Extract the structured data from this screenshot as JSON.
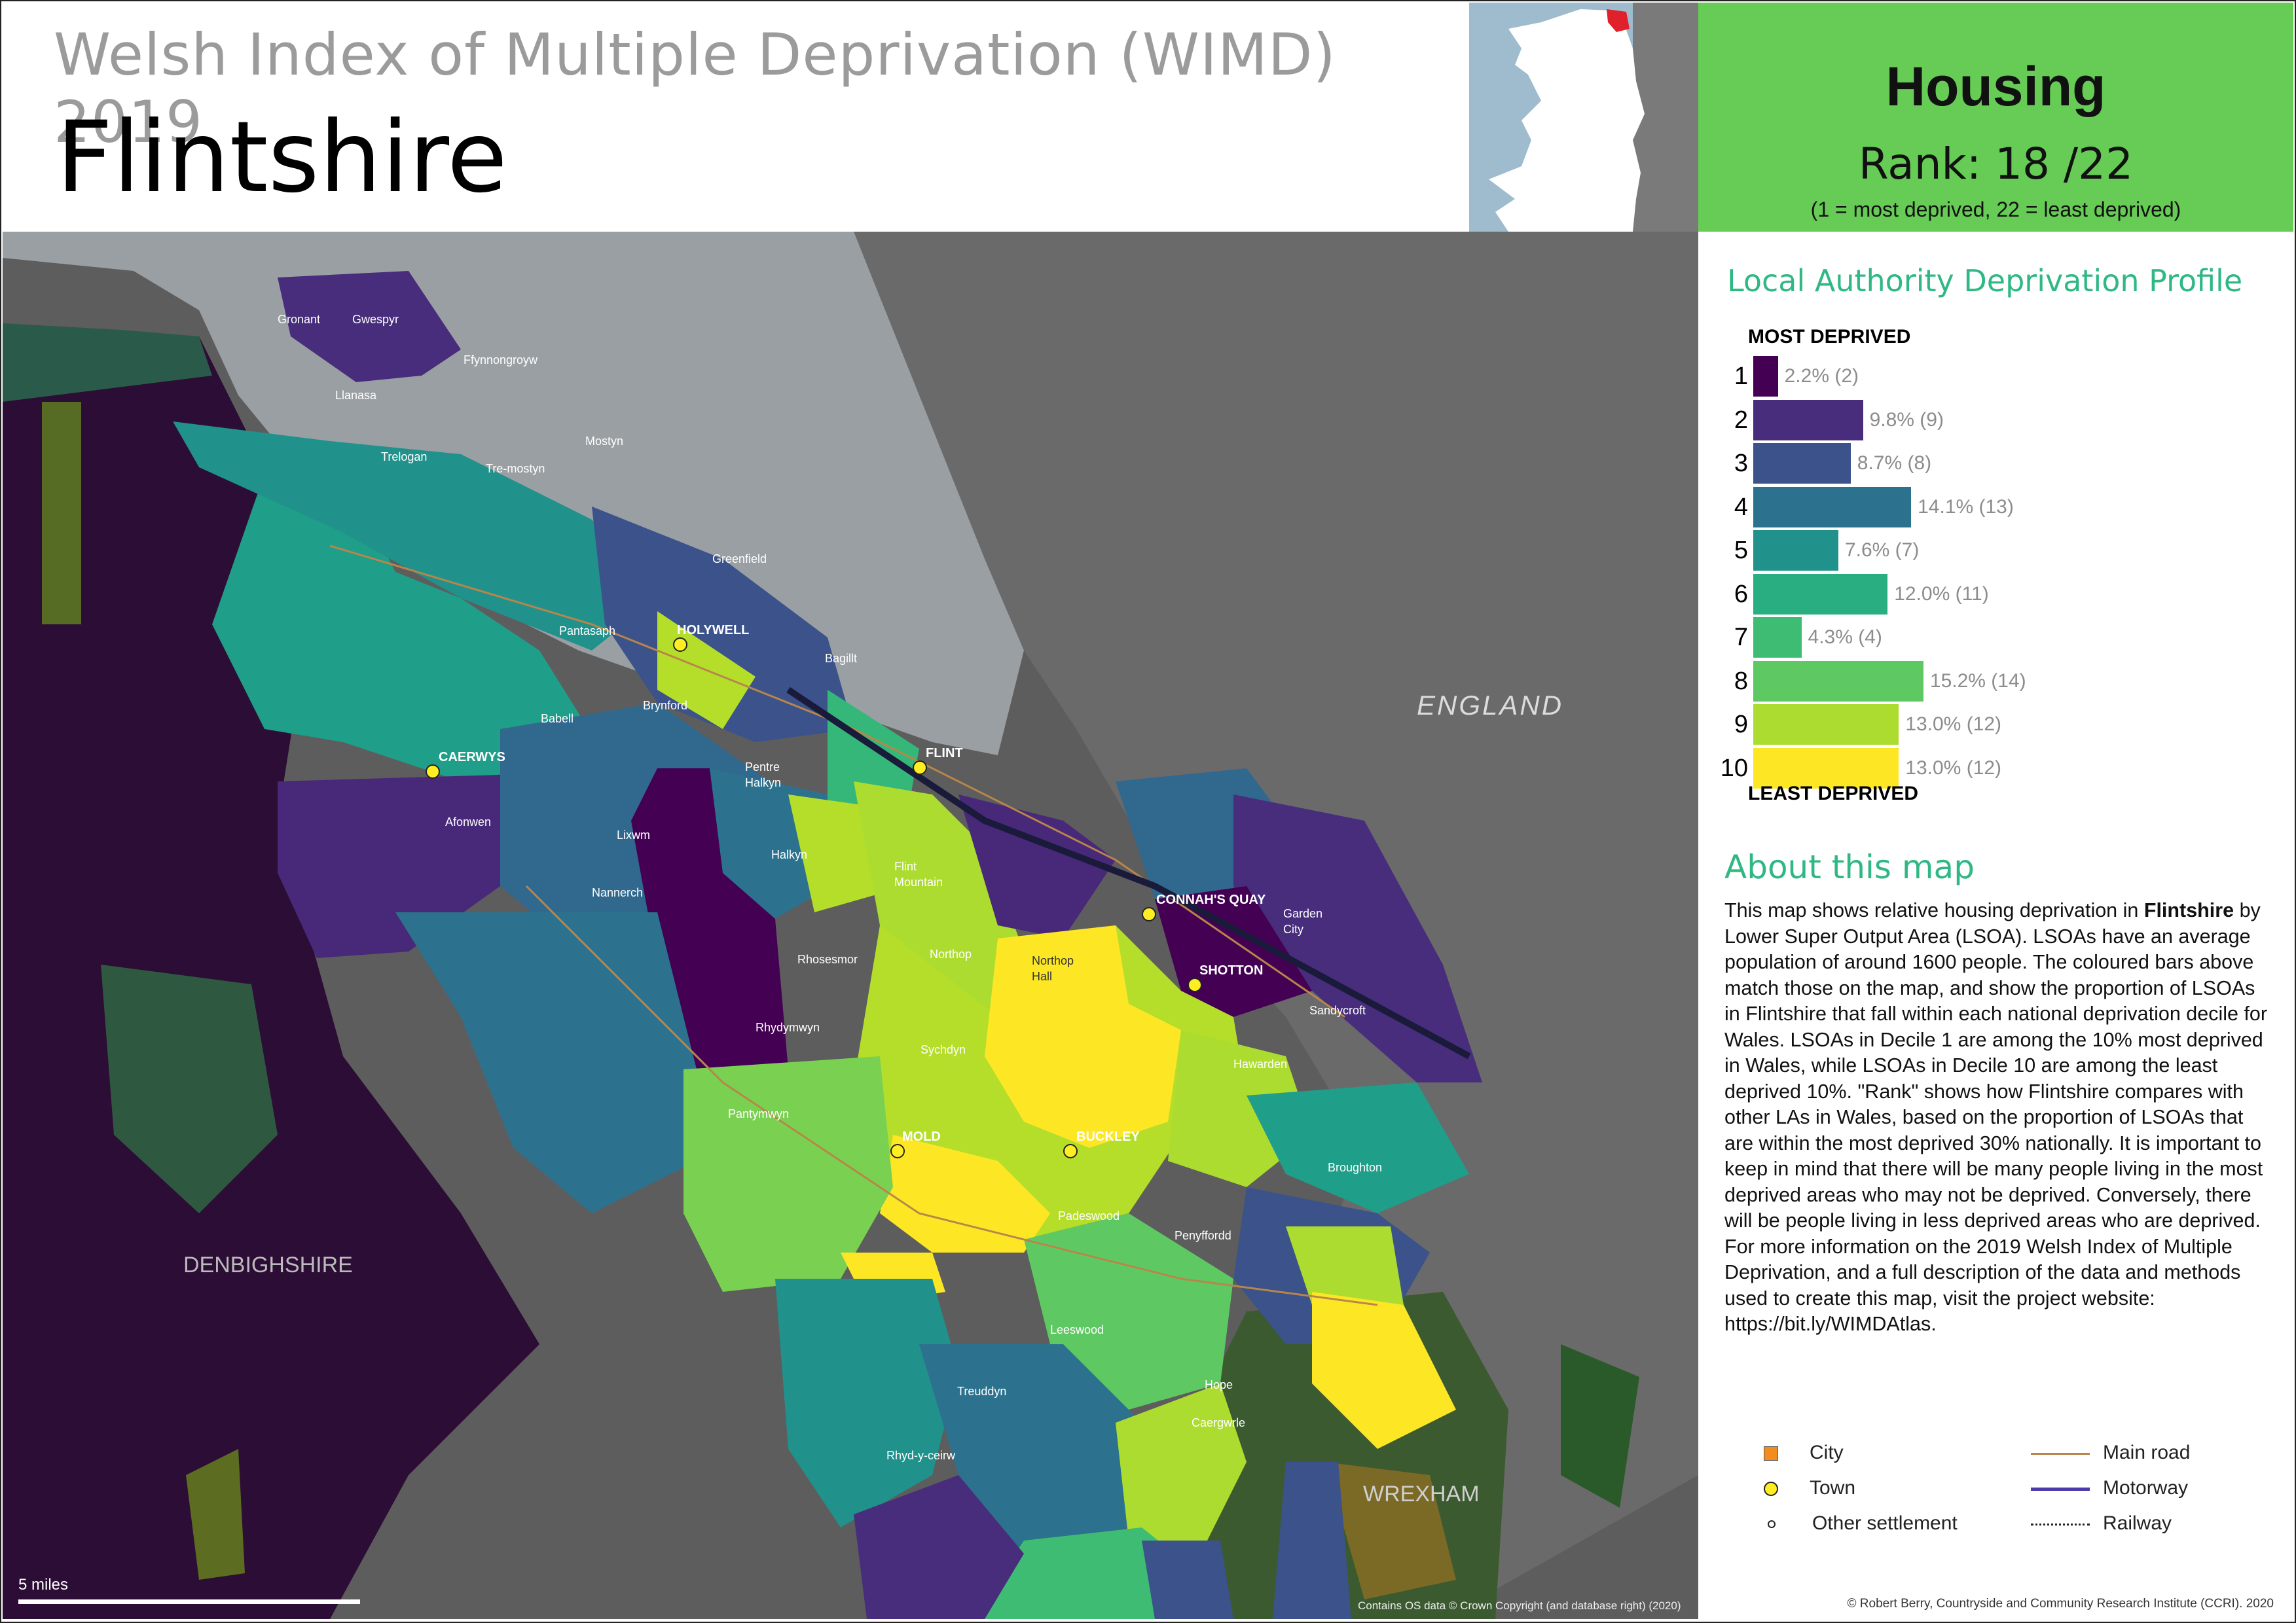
{
  "header": {
    "supertitle": "Welsh Index of Multiple Deprivation (WIMD) 2019",
    "title": "Flintshire"
  },
  "domain_panel": {
    "theme": "Housing",
    "rank_text": "Rank: 18 /22",
    "rank": 18,
    "rank_total": 22,
    "rank_key": "(1 =   most deprived, 22 = least deprived)"
  },
  "profile": {
    "title": "Local Authority Deprivation Profile",
    "top_label": "MOST DEPRIVED",
    "bottom_label": "LEAST DEPRIVED",
    "deciles": [
      {
        "decile": "1",
        "percent": 2.2,
        "count": 2,
        "label": "2.2% (2)",
        "color": "#440154"
      },
      {
        "decile": "2",
        "percent": 9.8,
        "count": 9,
        "label": "9.8% (9)",
        "color": "#472d7b"
      },
      {
        "decile": "3",
        "percent": 8.7,
        "count": 8,
        "label": "8.7% (8)",
        "color": "#3b528b"
      },
      {
        "decile": "4",
        "percent": 14.1,
        "count": 13,
        "label": "14.1% (13)",
        "color": "#2c728e"
      },
      {
        "decile": "5",
        "percent": 7.6,
        "count": 7,
        "label": "7.6% (7)",
        "color": "#21918c"
      },
      {
        "decile": "6",
        "percent": 12.0,
        "count": 11,
        "label": "12.0% (11)",
        "color": "#28ae80"
      },
      {
        "decile": "7",
        "percent": 4.3,
        "count": 4,
        "label": "4.3% (4)",
        "color": "#3fbc73"
      },
      {
        "decile": "8",
        "percent": 15.2,
        "count": 14,
        "label": "15.2% (14)",
        "color": "#5ec962"
      },
      {
        "decile": "9",
        "percent": 13.0,
        "count": 12,
        "label": "13.0% (12)",
        "color": "#addc30"
      },
      {
        "decile": "10",
        "percent": 13.0,
        "count": 12,
        "label": "13.0% (12)",
        "color": "#fde725"
      }
    ]
  },
  "about": {
    "title": "About this map",
    "p1": "This map shows relative housing deprivation in ",
    "p1_bold": "Flintshire",
    "p2": " by Lower Super Output Area (LSOA). LSOAs have an average population of around 1600 people. The coloured bars above match those on the map, and show the proportion of LSOAs in Flintshire that fall within each national deprivation decile for Wales. LSOAs in Decile 1 are among the 10% most deprived in Wales, while LSOAs in Decile 10 are among the least deprived 10%. \"Rank\" shows how Flintshire compares with other LAs in Wales, based on the proportion of LSOAs that are within the most deprived 30% nationally. It is important to keep in mind that there will be many people living in the most deprived areas who may not be deprived. Conversely, there will be people living in less deprived areas who are deprived. For more information on the 2019 Welsh Index of Multiple Deprivation, and a full description of the data and methods used to create this map, visit the project website: https://bit.ly/WIMDAtlas."
  },
  "legend": {
    "city": "City",
    "town": "Town",
    "other": "Other settlement",
    "main_road": "Main road",
    "motorway": "Motorway",
    "railway": "Railway",
    "colors": {
      "city": "#f28c1e",
      "town": "#ffee22",
      "main_road": "#b8864a",
      "motorway": "#4b3aa8"
    }
  },
  "credit": "© Robert Berry, Countryside and Community Research Institute (CCRI). 2020",
  "map": {
    "regions": {
      "england": "ENGLAND",
      "denbighshire": "DENBIGHSHIRE",
      "wrexham": "WREXHAM"
    },
    "towns": {
      "holywell": "HOLYWELL",
      "caerwys": "CAERWYS",
      "flint": "FLINT",
      "connahs_quay": "CONNAH'S QUAY",
      "shotton": "SHOTTON",
      "mold": "MOLD",
      "buckley": "BUCKLEY"
    },
    "settlements": {
      "gronant": "Gronant",
      "gwespyr": "Gwespyr",
      "ffynnongroyw": "Ffynnongroyw",
      "llanasa": "Llanasa",
      "trelogan": "Trelogan",
      "mostyn": "Mostyn",
      "tremostyn": "Tre-mostyn",
      "greenfield": "Greenfield",
      "pantasaph": "Pantasaph",
      "bagillt": "Bagillt",
      "babell": "Babell",
      "brynford": "Brynford",
      "pentre": "Pentre",
      "halkyn_pentre": "Halkyn",
      "afonwen": "Afonwen",
      "lixwm": "Lixwm",
      "halkyn": "Halkyn",
      "flint": "Flint",
      "mountain": "Mountain",
      "nannerch": "Nannerch",
      "garden": "Garden",
      "city": "City",
      "rhosesmor": "Rhosesmor",
      "northop": "Northop",
      "northop2": "Northop",
      "hall": "Hall",
      "sandycroft": "Sandycroft",
      "rhydymwyn": "Rhydymwyn",
      "sychdyn": "Sychdyn",
      "hawarden": "Hawarden",
      "pantymwyn": "Pantymwyn",
      "broughton": "Broughton",
      "padeswood": "Padeswood",
      "penyffordd": "Penyffordd",
      "leeswood": "Leeswood",
      "hope": "Hope",
      "treuddyn": "Treuddyn",
      "caergwrle": "Caergwrle",
      "rhydyceirw": "Rhyd-y-ceirw"
    },
    "scale": "5 miles",
    "os_credit": "Contains OS data © Crown Copyright (and database right) (2020)"
  }
}
